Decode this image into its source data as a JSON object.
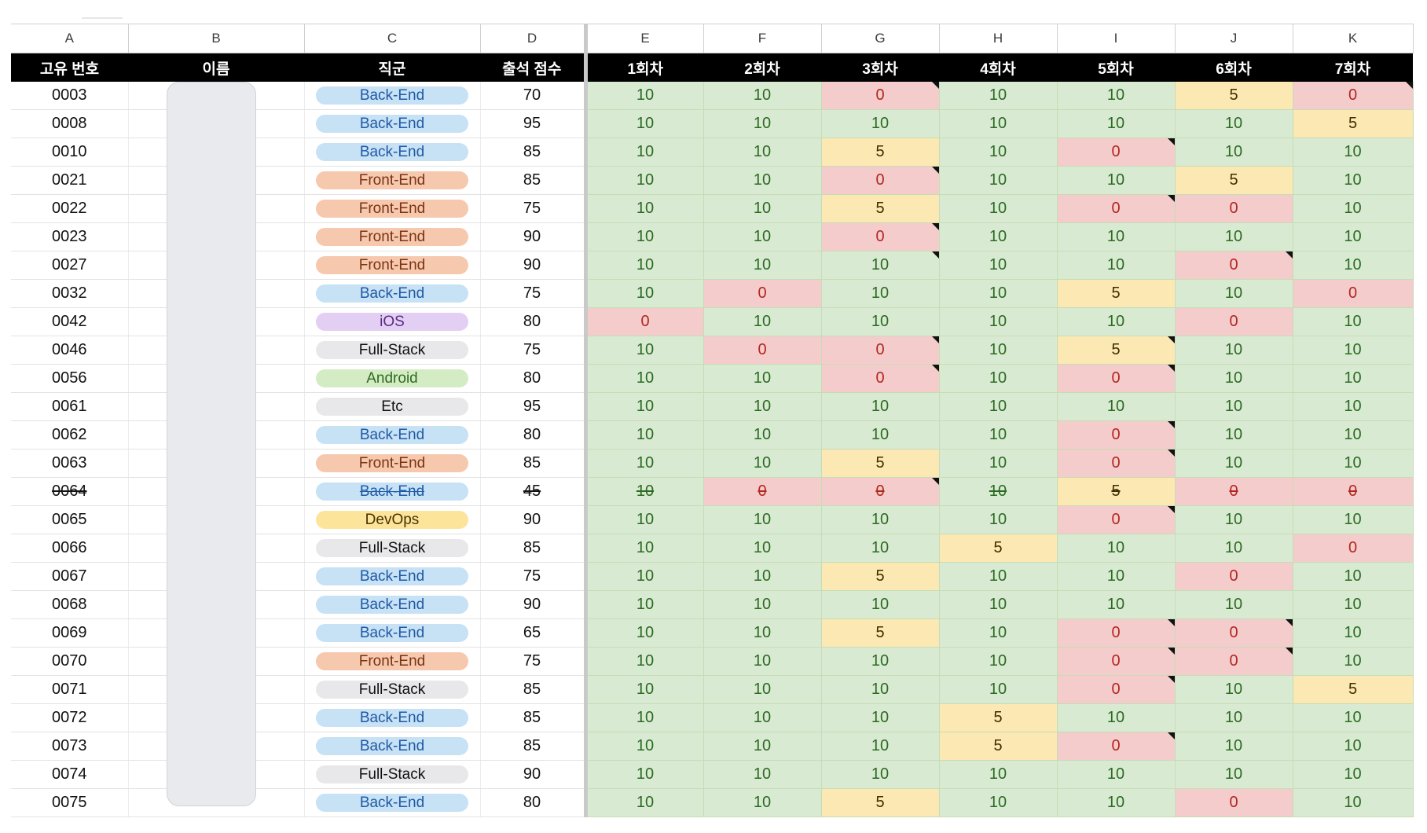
{
  "columns": [
    "A",
    "B",
    "C",
    "D",
    "E",
    "F",
    "G",
    "H",
    "I",
    "J",
    "K"
  ],
  "headers": [
    "고유 번호",
    "이름",
    "직군",
    "출석 점수",
    "1회차",
    "2회차",
    "3회차",
    "4회차",
    "5회차",
    "6회차",
    "7회차"
  ],
  "role_colors": {
    "Back-End": {
      "bg": "#c7e1f5",
      "fg": "#1f5aa6"
    },
    "Front-End": {
      "bg": "#f6c8ad",
      "fg": "#7a3414"
    },
    "iOS": {
      "bg": "#e3cff3",
      "fg": "#5b2a86"
    },
    "Full-Stack": {
      "bg": "#e8e8ea",
      "fg": "#111111"
    },
    "Android": {
      "bg": "#d4ecc4",
      "fg": "#2e6b1f"
    },
    "Etc": {
      "bg": "#e8e8ea",
      "fg": "#111111"
    },
    "DevOps": {
      "bg": "#fde49b",
      "fg": "#473400"
    }
  },
  "score_colors": {
    "10": "#d9ead3",
    "5": "#fce8b2",
    "0": "#f4cccc"
  },
  "rows": [
    {
      "id": "0003",
      "role": "Back-End",
      "attendance": "70",
      "scores": [
        "10",
        "10",
        "0",
        "10",
        "10",
        "5",
        "0"
      ],
      "flags": [
        0,
        0,
        1,
        0,
        0,
        0,
        1
      ]
    },
    {
      "id": "0008",
      "role": "Back-End",
      "attendance": "95",
      "scores": [
        "10",
        "10",
        "10",
        "10",
        "10",
        "10",
        "5"
      ],
      "flags": [
        0,
        0,
        0,
        0,
        0,
        0,
        0
      ]
    },
    {
      "id": "0010",
      "role": "Back-End",
      "attendance": "85",
      "scores": [
        "10",
        "10",
        "5",
        "10",
        "0",
        "10",
        "10"
      ],
      "flags": [
        0,
        0,
        0,
        0,
        1,
        0,
        0
      ]
    },
    {
      "id": "0021",
      "role": "Front-End",
      "attendance": "85",
      "scores": [
        "10",
        "10",
        "0",
        "10",
        "10",
        "5",
        "10"
      ],
      "flags": [
        0,
        0,
        1,
        0,
        0,
        0,
        0
      ]
    },
    {
      "id": "0022",
      "role": "Front-End",
      "attendance": "75",
      "scores": [
        "10",
        "10",
        "5",
        "10",
        "0",
        "0",
        "10"
      ],
      "flags": [
        0,
        0,
        0,
        0,
        1,
        0,
        0
      ]
    },
    {
      "id": "0023",
      "role": "Front-End",
      "attendance": "90",
      "scores": [
        "10",
        "10",
        "0",
        "10",
        "10",
        "10",
        "10"
      ],
      "flags": [
        0,
        0,
        1,
        0,
        0,
        0,
        0
      ]
    },
    {
      "id": "0027",
      "role": "Front-End",
      "attendance": "90",
      "scores": [
        "10",
        "10",
        "10",
        "10",
        "10",
        "0",
        "10"
      ],
      "flags": [
        0,
        0,
        1,
        0,
        0,
        1,
        0
      ]
    },
    {
      "id": "0032",
      "role": "Back-End",
      "attendance": "75",
      "scores": [
        "10",
        "0",
        "10",
        "10",
        "5",
        "10",
        "0"
      ],
      "flags": [
        0,
        0,
        0,
        0,
        0,
        0,
        0
      ]
    },
    {
      "id": "0042",
      "role": "iOS",
      "attendance": "80",
      "scores": [
        "0",
        "10",
        "10",
        "10",
        "10",
        "0",
        "10"
      ],
      "flags": [
        0,
        0,
        0,
        0,
        0,
        0,
        0
      ]
    },
    {
      "id": "0046",
      "role": "Full-Stack",
      "attendance": "75",
      "scores": [
        "10",
        "0",
        "0",
        "10",
        "5",
        "10",
        "10"
      ],
      "flags": [
        0,
        0,
        1,
        0,
        1,
        0,
        0
      ]
    },
    {
      "id": "0056",
      "role": "Android",
      "attendance": "80",
      "scores": [
        "10",
        "10",
        "0",
        "10",
        "0",
        "10",
        "10"
      ],
      "flags": [
        0,
        0,
        1,
        0,
        1,
        0,
        0
      ]
    },
    {
      "id": "0061",
      "role": "Etc",
      "attendance": "95",
      "scores": [
        "10",
        "10",
        "10",
        "10",
        "10",
        "10",
        "10"
      ],
      "flags": [
        0,
        0,
        0,
        0,
        0,
        0,
        0
      ]
    },
    {
      "id": "0062",
      "role": "Back-End",
      "attendance": "80",
      "scores": [
        "10",
        "10",
        "10",
        "10",
        "0",
        "10",
        "10"
      ],
      "flags": [
        0,
        0,
        0,
        0,
        1,
        0,
        0
      ]
    },
    {
      "id": "0063",
      "role": "Front-End",
      "attendance": "85",
      "scores": [
        "10",
        "10",
        "5",
        "10",
        "0",
        "10",
        "10"
      ],
      "flags": [
        0,
        0,
        0,
        0,
        1,
        0,
        0
      ]
    },
    {
      "id": "0064",
      "role": "Back-End",
      "attendance": "45",
      "scores": [
        "10",
        "0",
        "0",
        "10",
        "5",
        "0",
        "0"
      ],
      "flags": [
        0,
        0,
        1,
        0,
        0,
        0,
        0
      ],
      "struck": true
    },
    {
      "id": "0065",
      "role": "DevOps",
      "attendance": "90",
      "scores": [
        "10",
        "10",
        "10",
        "10",
        "0",
        "10",
        "10"
      ],
      "flags": [
        0,
        0,
        0,
        0,
        1,
        0,
        0
      ]
    },
    {
      "id": "0066",
      "role": "Full-Stack",
      "attendance": "85",
      "scores": [
        "10",
        "10",
        "10",
        "5",
        "10",
        "10",
        "0"
      ],
      "flags": [
        0,
        0,
        0,
        0,
        0,
        0,
        0
      ]
    },
    {
      "id": "0067",
      "role": "Back-End",
      "attendance": "75",
      "scores": [
        "10",
        "10",
        "5",
        "10",
        "10",
        "0",
        "10"
      ],
      "flags": [
        0,
        0,
        0,
        0,
        0,
        0,
        0
      ]
    },
    {
      "id": "0068",
      "role": "Back-End",
      "attendance": "90",
      "scores": [
        "10",
        "10",
        "10",
        "10",
        "10",
        "10",
        "10"
      ],
      "flags": [
        0,
        0,
        0,
        0,
        0,
        0,
        0
      ]
    },
    {
      "id": "0069",
      "role": "Back-End",
      "attendance": "65",
      "scores": [
        "10",
        "10",
        "5",
        "10",
        "0",
        "0",
        "10"
      ],
      "flags": [
        0,
        0,
        0,
        0,
        1,
        1,
        0
      ]
    },
    {
      "id": "0070",
      "role": "Front-End",
      "attendance": "75",
      "scores": [
        "10",
        "10",
        "10",
        "10",
        "0",
        "0",
        "10"
      ],
      "flags": [
        0,
        0,
        0,
        0,
        1,
        1,
        0
      ]
    },
    {
      "id": "0071",
      "role": "Full-Stack",
      "attendance": "85",
      "scores": [
        "10",
        "10",
        "10",
        "10",
        "0",
        "10",
        "5"
      ],
      "flags": [
        0,
        0,
        0,
        0,
        1,
        0,
        0
      ]
    },
    {
      "id": "0072",
      "role": "Back-End",
      "attendance": "85",
      "scores": [
        "10",
        "10",
        "10",
        "5",
        "10",
        "10",
        "10"
      ],
      "flags": [
        0,
        0,
        0,
        0,
        0,
        0,
        0
      ]
    },
    {
      "id": "0073",
      "role": "Back-End",
      "attendance": "85",
      "scores": [
        "10",
        "10",
        "10",
        "5",
        "0",
        "10",
        "10"
      ],
      "flags": [
        0,
        0,
        0,
        0,
        1,
        0,
        0
      ]
    },
    {
      "id": "0074",
      "role": "Full-Stack",
      "attendance": "90",
      "scores": [
        "10",
        "10",
        "10",
        "10",
        "10",
        "10",
        "10"
      ],
      "flags": [
        0,
        0,
        0,
        0,
        0,
        0,
        0
      ]
    },
    {
      "id": "0075",
      "role": "Back-End",
      "attendance": "80",
      "scores": [
        "10",
        "10",
        "5",
        "10",
        "10",
        "0",
        "10"
      ],
      "flags": [
        0,
        0,
        0,
        0,
        0,
        0,
        0
      ]
    }
  ]
}
